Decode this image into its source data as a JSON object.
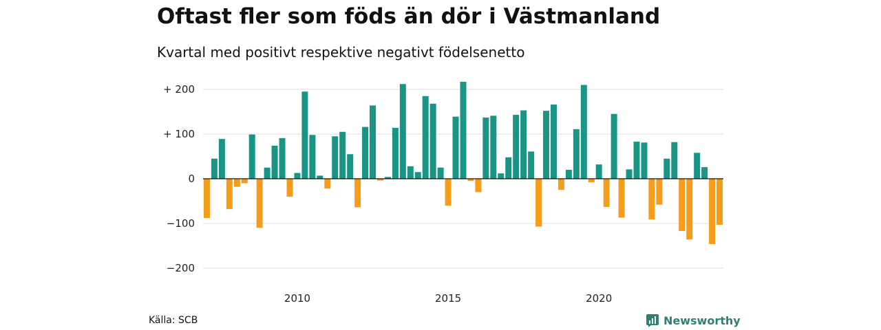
{
  "header": {
    "title": "Oftast fler som föds än dör i Västmanland",
    "subtitle": "Kvartal med positivt respektive negativt födelsenetto"
  },
  "footer": {
    "source": "Källa: SCB",
    "brand": "Newsworthy"
  },
  "colors": {
    "positive": "#1a9485",
    "negative": "#f59d1a",
    "grid": "#dddddd",
    "brand": "#2f7f76"
  },
  "chart_data": {
    "type": "bar",
    "start_year": 2007,
    "start_quarter": 1,
    "values": [
      -88,
      45,
      89,
      -68,
      -18,
      -10,
      99,
      -110,
      25,
      74,
      91,
      -40,
      13,
      195,
      98,
      7,
      -22,
      95,
      105,
      55,
      -64,
      116,
      164,
      -4,
      4,
      114,
      212,
      28,
      15,
      185,
      168,
      25,
      -60,
      139,
      217,
      -5,
      -30,
      137,
      141,
      12,
      48,
      143,
      153,
      61,
      -107,
      152,
      166,
      -25,
      20,
      111,
      210,
      -8,
      32,
      -63,
      145,
      -87,
      21,
      83,
      81,
      -91,
      -58,
      45,
      82,
      -117,
      -136,
      58,
      26,
      -146,
      -103
    ],
    "ylim": [
      -200,
      200
    ],
    "yticks": [
      200,
      100,
      0,
      -100,
      -200
    ],
    "ytick_labels": [
      "+ 200",
      "+ 100",
      "0",
      "−100",
      "−200"
    ],
    "xtick_labels": [
      "2010",
      "2015",
      "2020"
    ],
    "grid": true
  }
}
